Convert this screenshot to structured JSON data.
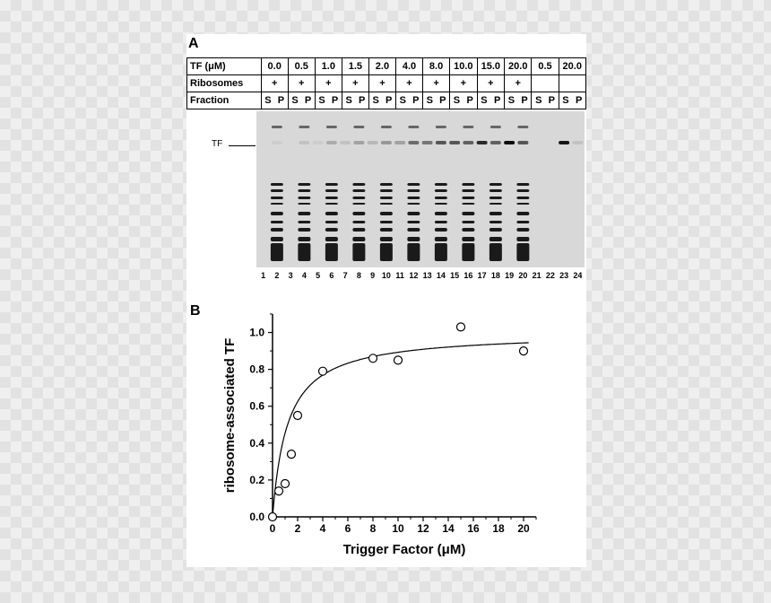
{
  "panel_a": {
    "letter": "A",
    "tf_header": "TF (μM)",
    "ribosomes_label": "Ribosomes",
    "fraction_label": "Fraction",
    "tf_values": [
      "0.0",
      "0.5",
      "1.0",
      "1.5",
      "2.0",
      "4.0",
      "8.0",
      "10.0",
      "15.0",
      "20.0",
      "0.5",
      "20.0"
    ],
    "ribosomes": [
      "+",
      "+",
      "+",
      "+",
      "+",
      "+",
      "+",
      "+",
      "+",
      "+",
      "",
      ""
    ],
    "fraction_s": "S",
    "fraction_p": "P",
    "band_label": "TF",
    "lane_numbers": [
      "1",
      "2",
      "3",
      "4",
      "5",
      "6",
      "7",
      "8",
      "9",
      "10",
      "11",
      "12",
      "13",
      "14",
      "15",
      "16",
      "17",
      "18",
      "19",
      "20",
      "21",
      "22",
      "23",
      "24"
    ],
    "tf_band_intensity": [
      0,
      0.05,
      0,
      0.1,
      0.05,
      0.2,
      0.1,
      0.25,
      0.15,
      0.3,
      0.25,
      0.5,
      0.45,
      0.6,
      0.6,
      0.55,
      0.8,
      0.55,
      0.95,
      0.6,
      0,
      0,
      0.9,
      0.1
    ],
    "ribosome_lane": [
      false,
      true,
      false,
      true,
      false,
      true,
      false,
      true,
      false,
      true,
      false,
      true,
      false,
      true,
      false,
      true,
      false,
      true,
      false,
      true,
      false,
      false,
      false,
      false
    ]
  },
  "panel_b": {
    "letter": "B"
  },
  "chart_data": {
    "type": "scatter",
    "xlabel": "Trigger Factor (μM)",
    "ylabel": "ribosome-associated TF",
    "xlim": [
      0,
      21
    ],
    "ylim": [
      0,
      1.1
    ],
    "xticks": [
      0,
      2,
      4,
      6,
      8,
      10,
      12,
      14,
      16,
      18,
      20
    ],
    "yticks": [
      0.0,
      0.2,
      0.4,
      0.6,
      0.8,
      1.0
    ],
    "x": [
      0,
      0.5,
      1.0,
      1.5,
      2.0,
      4.0,
      8.0,
      10.0,
      15.0,
      20.0
    ],
    "y": [
      0.0,
      0.14,
      0.18,
      0.34,
      0.55,
      0.79,
      0.86,
      0.85,
      1.03,
      0.9
    ],
    "fit": {
      "model": "hyperbolic",
      "bmax": 1.0,
      "kd": 1.2
    }
  }
}
